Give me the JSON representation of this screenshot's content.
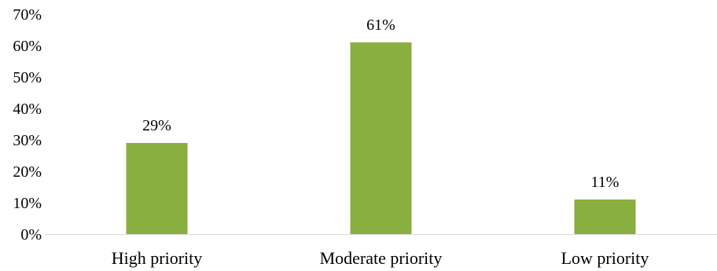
{
  "chart_data": {
    "type": "bar",
    "title": "",
    "xlabel": "",
    "ylabel": "",
    "categories": [
      "High priority",
      "Moderate priority",
      "Low priority"
    ],
    "values": [
      29,
      61,
      11
    ],
    "data_labels": [
      "29%",
      "61%",
      "11%"
    ],
    "ylim": [
      0,
      70
    ],
    "yticks": [
      0,
      10,
      20,
      30,
      40,
      50,
      60,
      70
    ],
    "ytick_labels": [
      "0%",
      "10%",
      "20%",
      "30%",
      "40%",
      "50%",
      "60%",
      "70%"
    ],
    "grid": false,
    "legend": "none",
    "bar_color": "#8AAE3F"
  }
}
